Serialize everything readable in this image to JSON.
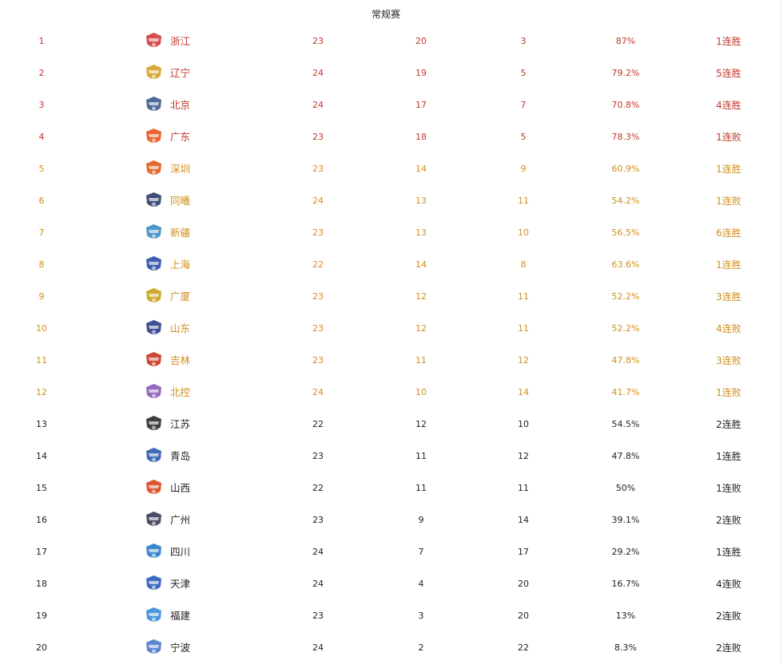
{
  "page_title": "常规赛",
  "colors": {
    "red": "#c0392b",
    "gold": "#d08f1c",
    "black": "#222222"
  },
  "teams": [
    {
      "rank": "1",
      "name": "浙江",
      "games": "23",
      "wins": "20",
      "losses": "3",
      "pct": "87%",
      "streak": "1连胜",
      "tier": "red",
      "logo": "zhejiang-logo-icon",
      "logo_color": "#d23a3a"
    },
    {
      "rank": "2",
      "name": "辽宁",
      "games": "24",
      "wins": "19",
      "losses": "5",
      "pct": "79.2%",
      "streak": "5连胜",
      "tier": "red",
      "logo": "liaoning-logo-icon",
      "logo_color": "#d4a12a"
    },
    {
      "rank": "3",
      "name": "北京",
      "games": "24",
      "wins": "17",
      "losses": "7",
      "pct": "70.8%",
      "streak": "4连胜",
      "tier": "red",
      "logo": "beijing-logo-icon",
      "logo_color": "#3a5a8a"
    },
    {
      "rank": "4",
      "name": "广东",
      "games": "23",
      "wins": "18",
      "losses": "5",
      "pct": "78.3%",
      "streak": "1连败",
      "tier": "red",
      "logo": "guangdong-logo-icon",
      "logo_color": "#e8541c"
    },
    {
      "rank": "5",
      "name": "深圳",
      "games": "23",
      "wins": "14",
      "losses": "9",
      "pct": "60.9%",
      "streak": "1连胜",
      "tier": "gold",
      "logo": "shenzhen-logo-icon",
      "logo_color": "#e05a14"
    },
    {
      "rank": "6",
      "name": "同曦",
      "games": "24",
      "wins": "13",
      "losses": "11",
      "pct": "54.2%",
      "streak": "1连败",
      "tier": "gold",
      "logo": "tongxi-logo-icon",
      "logo_color": "#2a3a6a"
    },
    {
      "rank": "7",
      "name": "新疆",
      "games": "23",
      "wins": "13",
      "losses": "10",
      "pct": "56.5%",
      "streak": "6连胜",
      "tier": "gold",
      "logo": "xinjiang-logo-icon",
      "logo_color": "#3a8ac4"
    },
    {
      "rank": "8",
      "name": "上海",
      "games": "22",
      "wins": "14",
      "losses": "8",
      "pct": "63.6%",
      "streak": "1连胜",
      "tier": "gold",
      "logo": "shanghai-logo-icon",
      "logo_color": "#2a4aa8"
    },
    {
      "rank": "9",
      "name": "广厦",
      "games": "23",
      "wins": "12",
      "losses": "11",
      "pct": "52.2%",
      "streak": "3连胜",
      "tier": "gold",
      "logo": "guangsha-logo-icon",
      "logo_color": "#c8a018"
    },
    {
      "rank": "10",
      "name": "山东",
      "games": "23",
      "wins": "12",
      "losses": "11",
      "pct": "52.2%",
      "streak": "4连败",
      "tier": "gold",
      "logo": "shandong-logo-icon",
      "logo_color": "#2a3a8a"
    },
    {
      "rank": "11",
      "name": "吉林",
      "games": "23",
      "wins": "11",
      "losses": "12",
      "pct": "47.8%",
      "streak": "3连败",
      "tier": "gold",
      "logo": "jilin-logo-icon",
      "logo_color": "#c8341c"
    },
    {
      "rank": "12",
      "name": "北控",
      "games": "24",
      "wins": "10",
      "losses": "14",
      "pct": "41.7%",
      "streak": "1连败",
      "tier": "gold",
      "logo": "beikong-logo-icon",
      "logo_color": "#8a5ab8"
    },
    {
      "rank": "13",
      "name": "江苏",
      "games": "22",
      "wins": "12",
      "losses": "10",
      "pct": "54.5%",
      "streak": "2连胜",
      "tier": "black",
      "logo": "jiangsu-logo-icon",
      "logo_color": "#2a2a2a"
    },
    {
      "rank": "14",
      "name": "青岛",
      "games": "23",
      "wins": "11",
      "losses": "12",
      "pct": "47.8%",
      "streak": "1连胜",
      "tier": "black",
      "logo": "qingdao-logo-icon",
      "logo_color": "#2a5ab0"
    },
    {
      "rank": "15",
      "name": "山西",
      "games": "22",
      "wins": "11",
      "losses": "11",
      "pct": "50%",
      "streak": "1连败",
      "tier": "black",
      "logo": "shanxi-logo-icon",
      "logo_color": "#d8461c"
    },
    {
      "rank": "16",
      "name": "广州",
      "games": "23",
      "wins": "9",
      "losses": "14",
      "pct": "39.1%",
      "streak": "2连败",
      "tier": "black",
      "logo": "guangzhou-logo-icon",
      "logo_color": "#3a3a5a"
    },
    {
      "rank": "17",
      "name": "四川",
      "games": "24",
      "wins": "7",
      "losses": "17",
      "pct": "29.2%",
      "streak": "1连胜",
      "tier": "black",
      "logo": "sichuan-logo-icon",
      "logo_color": "#2a7ac8"
    },
    {
      "rank": "18",
      "name": "天津",
      "games": "24",
      "wins": "4",
      "losses": "20",
      "pct": "16.7%",
      "streak": "4连败",
      "tier": "black",
      "logo": "tianjin-logo-icon",
      "logo_color": "#2a5ab8"
    },
    {
      "rank": "19",
      "name": "福建",
      "games": "23",
      "wins": "3",
      "losses": "20",
      "pct": "13%",
      "streak": "2连败",
      "tier": "black",
      "logo": "fujian-logo-icon",
      "logo_color": "#3a8ad8"
    },
    {
      "rank": "20",
      "name": "宁波",
      "games": "24",
      "wins": "2",
      "losses": "22",
      "pct": "8.3%",
      "streak": "2连败",
      "tier": "black",
      "logo": "ningbo-logo-icon",
      "logo_color": "#4a7ac8"
    }
  ]
}
